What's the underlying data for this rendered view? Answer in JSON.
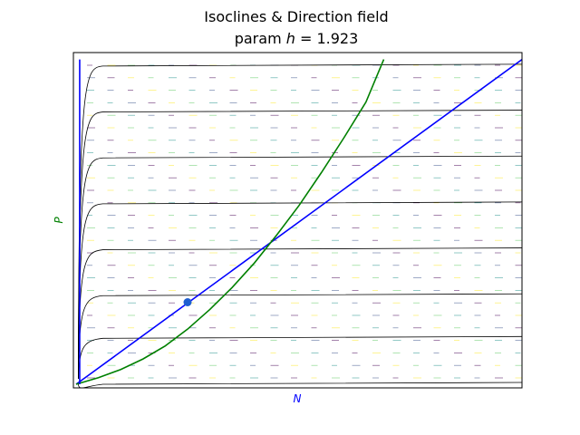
{
  "chart_data": {
    "type": "line",
    "title_line1": "Isoclines & Direction field",
    "title_line2_prefix": "param ",
    "title_line2_symbol": "h",
    "title_line2_suffix": " = 1.923",
    "xlabel": "N",
    "ylabel": "P",
    "xlabel_color": "#0000ff",
    "ylabel_color": "#008000",
    "xlim": [
      0,
      1
    ],
    "ylim": [
      0,
      1
    ],
    "ticks_shown": false,
    "grid": false,
    "series": [
      {
        "color": "#0000ff",
        "points": [
          [
            0.0,
            0.0
          ],
          [
            1.0,
            0.99
          ]
        ]
      },
      {
        "color": "#008000",
        "points": [
          [
            0.0,
            0.0
          ],
          [
            0.05,
            0.02
          ],
          [
            0.1,
            0.045
          ],
          [
            0.15,
            0.077
          ],
          [
            0.2,
            0.117
          ],
          [
            0.25,
            0.168
          ],
          [
            0.3,
            0.228
          ],
          [
            0.35,
            0.295
          ],
          [
            0.4,
            0.37
          ],
          [
            0.45,
            0.455
          ],
          [
            0.5,
            0.545
          ],
          [
            0.55,
            0.645
          ],
          [
            0.6,
            0.75
          ],
          [
            0.65,
            0.86
          ],
          [
            0.69,
            0.99
          ]
        ]
      },
      {
        "color": "#0000ff",
        "points": [
          [
            0.008,
            0.0
          ],
          [
            0.008,
            0.99
          ]
        ]
      }
    ],
    "equilibrium_point": {
      "x": 0.25,
      "y": 0.25,
      "color": "#1f5fd0"
    },
    "trajectories": {
      "color": "#000000",
      "levels": [
        0.97,
        0.83,
        0.69,
        0.55,
        0.41,
        0.27,
        0.14,
        0.0
      ]
    },
    "direction_field": {
      "colors": [
        "#440154",
        "#3b528b",
        "#21918c",
        "#5ec962",
        "#fde725"
      ]
    }
  }
}
